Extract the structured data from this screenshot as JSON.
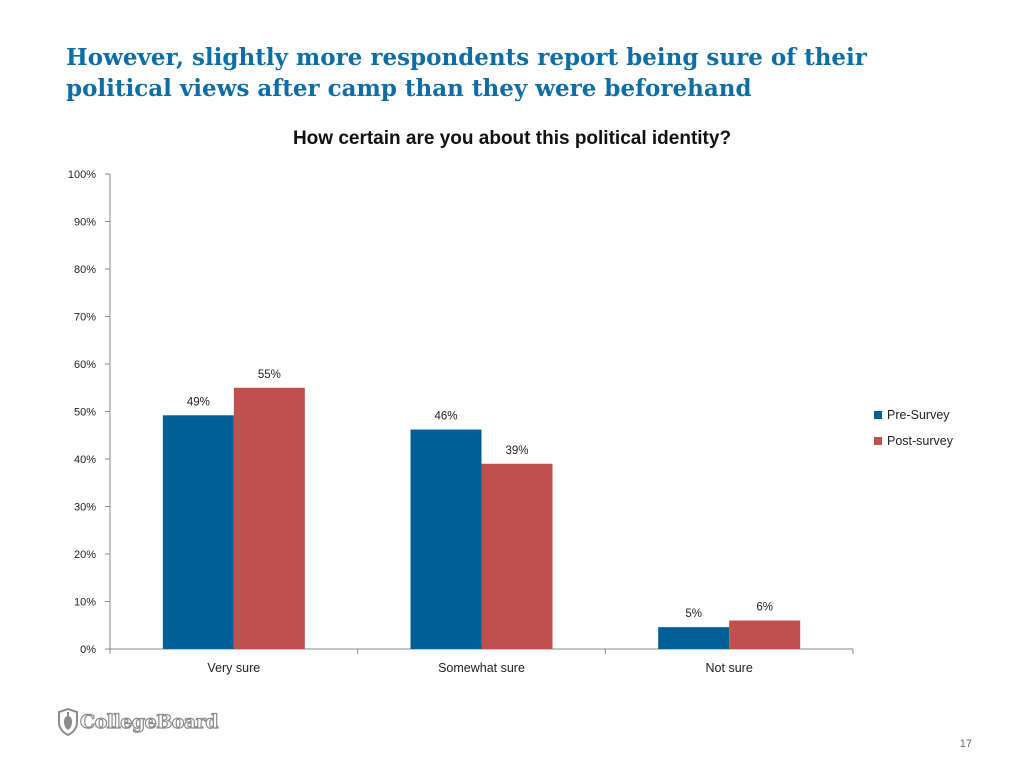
{
  "slide": {
    "title": "However, slightly more respondents report being sure of their political views after camp than they were beforehand",
    "page_number": "17",
    "logo_text": "CollegeBoard"
  },
  "colors": {
    "title": "#0d6ea6",
    "pre_survey": "#005f96",
    "post_survey": "#c0504d",
    "axis": "#888888"
  },
  "chart_data": {
    "type": "bar",
    "title": "How certain are you about this political identity?",
    "categories": [
      "Very sure",
      "Somewhat sure",
      "Not sure"
    ],
    "series": [
      {
        "name": "Pre-Survey",
        "values": [
          49.2,
          46.2,
          4.6
        ],
        "labels": [
          "49%",
          "46%",
          "5%"
        ]
      },
      {
        "name": "Post-survey",
        "values": [
          55.0,
          39.0,
          6.0
        ],
        "labels": [
          "55%",
          "39%",
          "6%"
        ]
      }
    ],
    "y_ticks": [
      "0%",
      "10%",
      "20%",
      "30%",
      "40%",
      "50%",
      "60%",
      "70%",
      "80%",
      "90%",
      "100%"
    ],
    "ylim": [
      0,
      100
    ],
    "xlabel": "",
    "ylabel": "",
    "grid": false,
    "legend_position": "right"
  }
}
